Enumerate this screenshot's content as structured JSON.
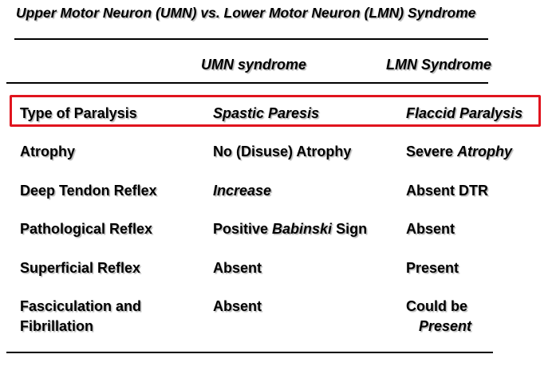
{
  "title": "Upper Motor Neuron (UMN) vs. Lower Motor Neuron (LMN) Syndrome",
  "columns": {
    "umn": "UMN syndrome",
    "lmn": "LMN Syndrome"
  },
  "rows": [
    {
      "label": "Type of Paralysis",
      "umn": "Spastic Paresis",
      "lmn": "Flaccid Paralysis"
    },
    {
      "label": "Atrophy",
      "umn": "No (Disuse) Atrophy",
      "lmn_prefix": "Severe ",
      "lmn_emph": "Atrophy"
    },
    {
      "label": "Deep Tendon Reflex",
      "umn": "Increase",
      "lmn": "Absent DTR"
    },
    {
      "label": "Pathological Reflex",
      "umn_prefix": "Positive ",
      "umn_emph": "Babinski",
      "umn_suffix": " Sign",
      "lmn": "Absent"
    },
    {
      "label": "Superficial Reflex",
      "umn": "Absent",
      "lmn": "Present"
    },
    {
      "label_line1": "Fasciculation and",
      "label_line2": "Fibrillation",
      "umn": "Absent",
      "lmn_line1": "Could be",
      "lmn_line2": "Present"
    }
  ],
  "colors": {
    "highlight_border": "#e0141e",
    "text": "#000000",
    "rules": "#000000"
  }
}
